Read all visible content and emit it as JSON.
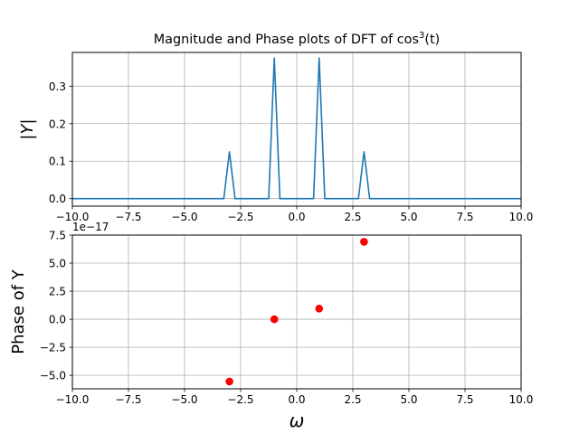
{
  "chart_data": [
    {
      "type": "line",
      "title": "Magnitude and Phase plots of DFT of cos",
      "title_superscript": "3",
      "title_suffix": "(t)",
      "xlabel": "",
      "ylabel": "|Y|",
      "xlim": [
        -10,
        10
      ],
      "ylim": [
        -0.02,
        0.39
      ],
      "xticks": [
        -10,
        -7.5,
        -5,
        -2.5,
        0,
        2.5,
        5,
        7.5,
        10
      ],
      "xtick_labels": [
        "−10.0",
        "−7.5",
        "−5.0",
        "−2.5",
        "0.0",
        "2.5",
        "5.0",
        "7.5",
        "10.0"
      ],
      "yticks": [
        0,
        0.1,
        0.2,
        0.3
      ],
      "ytick_labels": [
        "0.0",
        "0.1",
        "0.2",
        "0.3"
      ],
      "grid": true,
      "series": [
        {
          "color": "#1f77b4",
          "x": [
            -10,
            -3.25,
            -3,
            -2.75,
            -1.25,
            -1,
            -0.75,
            0.75,
            1,
            1.25,
            2.75,
            3,
            3.25,
            10
          ],
          "y": [
            0,
            0,
            0.125,
            0,
            0,
            0.375,
            0,
            0,
            0.375,
            0,
            0,
            0.125,
            0,
            0
          ]
        }
      ]
    },
    {
      "type": "scatter",
      "xlabel": "ω",
      "ylabel": "Phase of Y",
      "offset_text": "1e−17",
      "xlim": [
        -10,
        10
      ],
      "ylim": [
        -6.2,
        7.5
      ],
      "xticks": [
        -10,
        -7.5,
        -5,
        -2.5,
        0,
        2.5,
        5,
        7.5,
        10
      ],
      "xtick_labels": [
        "−10.0",
        "−7.5",
        "−5.0",
        "−2.5",
        "0.0",
        "2.5",
        "5.0",
        "7.5",
        "10.0"
      ],
      "yticks": [
        -5,
        -2.5,
        0,
        2.5,
        5,
        7.5
      ],
      "ytick_labels": [
        "−5.0",
        "−2.5",
        "0.0",
        "2.5",
        "5.0",
        "7.5"
      ],
      "grid": true,
      "series": [
        {
          "color": "#ff0000",
          "x": [
            -3,
            -1,
            1,
            3
          ],
          "y": [
            -5.55,
            0.0,
            0.95,
            6.9
          ]
        }
      ]
    }
  ]
}
